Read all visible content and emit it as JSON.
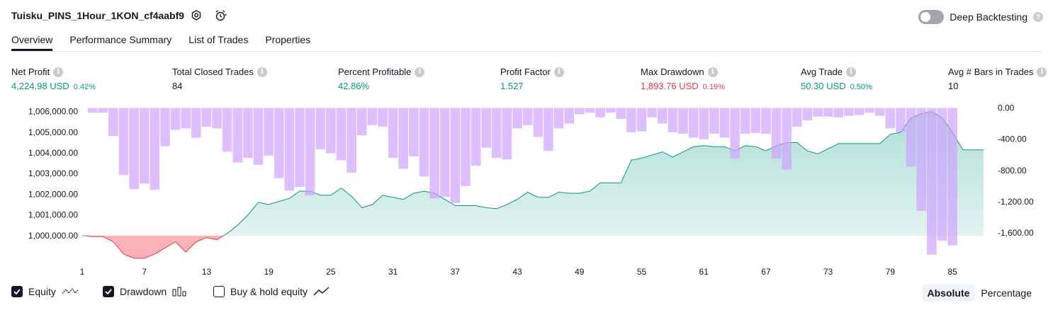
{
  "header": {
    "title": "Tuisku_PINS_1Hour_1KON_cf4aabf9",
    "deep_backtesting": "Deep Backtesting"
  },
  "tabs": [
    "Overview",
    "Performance Summary",
    "List of Trades",
    "Properties"
  ],
  "metrics": {
    "net_profit": {
      "label": "Net Profit",
      "value": "4,224.98 USD",
      "pct": "0.42%"
    },
    "total_closed_trades": {
      "label": "Total Closed Trades",
      "value": "84"
    },
    "percent_profitable": {
      "label": "Percent Profitable",
      "value": "42.86%"
    },
    "profit_factor": {
      "label": "Profit Factor",
      "value": "1.527"
    },
    "max_drawdown": {
      "label": "Max Drawdown",
      "value": "1,893.76 USD",
      "pct": "0.19%"
    },
    "avg_trade": {
      "label": "Avg Trade",
      "value": "50.30 USD",
      "pct": "0.50%"
    },
    "avg_bars": {
      "label": "Avg # Bars in Trades",
      "value": "10"
    }
  },
  "legend": {
    "equity": "Equity",
    "drawdown": "Drawdown",
    "buy_hold": "Buy & hold equity",
    "equity_checked": true,
    "drawdown_checked": true,
    "buy_hold_checked": false
  },
  "view_toggle": {
    "absolute": "Absolute",
    "percentage": "Percentage",
    "selected": "Absolute"
  },
  "colors": {
    "equity_up": "#089981",
    "equity_down": "#f23645",
    "drawdown_bar": "#cfa3ff"
  },
  "chart_data": {
    "type": "area",
    "x_ticks": [
      "1",
      "7",
      "13",
      "19",
      "25",
      "31",
      "37",
      "43",
      "49",
      "55",
      "61",
      "67",
      "73",
      "79",
      "85"
    ],
    "y_left_ticks": [
      "1,006,000.00",
      "1,005,000.00",
      "1,004,000.00",
      "1,003,000.00",
      "1,002,000.00",
      "1,001,000.00",
      "1,000,000.00"
    ],
    "y_right_ticks": [
      "0.00",
      "-400.00",
      "-800.00",
      "-1,200.00",
      "-1,600.00"
    ],
    "ylim_left": [
      999000,
      1006400
    ],
    "ylim_right": [
      -1900,
      60
    ],
    "equity": [
      1000000,
      999950,
      999950,
      999700,
      999100,
      998900,
      998900,
      999100,
      999400,
      999700,
      999200,
      999700,
      999900,
      999800,
      1000100,
      1000500,
      1001000,
      1001600,
      1001500,
      1001650,
      1001800,
      1002150,
      1002150,
      1001950,
      1001950,
      1002300,
      1001900,
      1001350,
      1001500,
      1001950,
      1001850,
      1001750,
      1002050,
      1002150,
      1002050,
      1001750,
      1001450,
      1001450,
      1001450,
      1001350,
      1001300,
      1001500,
      1001750,
      1002100,
      1001850,
      1001850,
      1002100,
      1002050,
      1002050,
      1002150,
      1002550,
      1002550,
      1002550,
      1003650,
      1003750,
      1003900,
      1004050,
      1003800,
      1004050,
      1004300,
      1004350,
      1004300,
      1004300,
      1004100,
      1004350,
      1004300,
      1004100,
      1004350,
      1004500,
      1004500,
      1004100,
      1003950,
      1004200,
      1004450,
      1004450,
      1004450,
      1004450,
      1004450,
      1004900,
      1005000,
      1005700,
      1005900,
      1006000,
      1005700,
      1005000,
      1004150,
      1004150,
      1004150
    ],
    "drawdown": [
      0,
      -60,
      -60,
      -360,
      -860,
      -1040,
      -970,
      -1050,
      -490,
      -280,
      -260,
      -380,
      -240,
      -260,
      -560,
      -700,
      -640,
      -730,
      -610,
      -900,
      -1060,
      -1010,
      -1120,
      -530,
      -580,
      -670,
      -830,
      -350,
      -220,
      -240,
      -640,
      -780,
      -620,
      -880,
      -1160,
      -1140,
      -1220,
      -1000,
      -740,
      -510,
      -640,
      -660,
      -260,
      -220,
      -370,
      -550,
      -260,
      -200,
      -80,
      -60,
      -120,
      -60,
      -140,
      -310,
      -300,
      -120,
      -200,
      -310,
      -330,
      -380,
      -400,
      -330,
      -380,
      -650,
      -330,
      -320,
      -330,
      -650,
      -790,
      -240,
      -160,
      -110,
      -110,
      -120,
      -100,
      -90,
      -60,
      -100,
      -260,
      -310,
      -750,
      -1320,
      -1880,
      -1700,
      -1760
    ]
  }
}
